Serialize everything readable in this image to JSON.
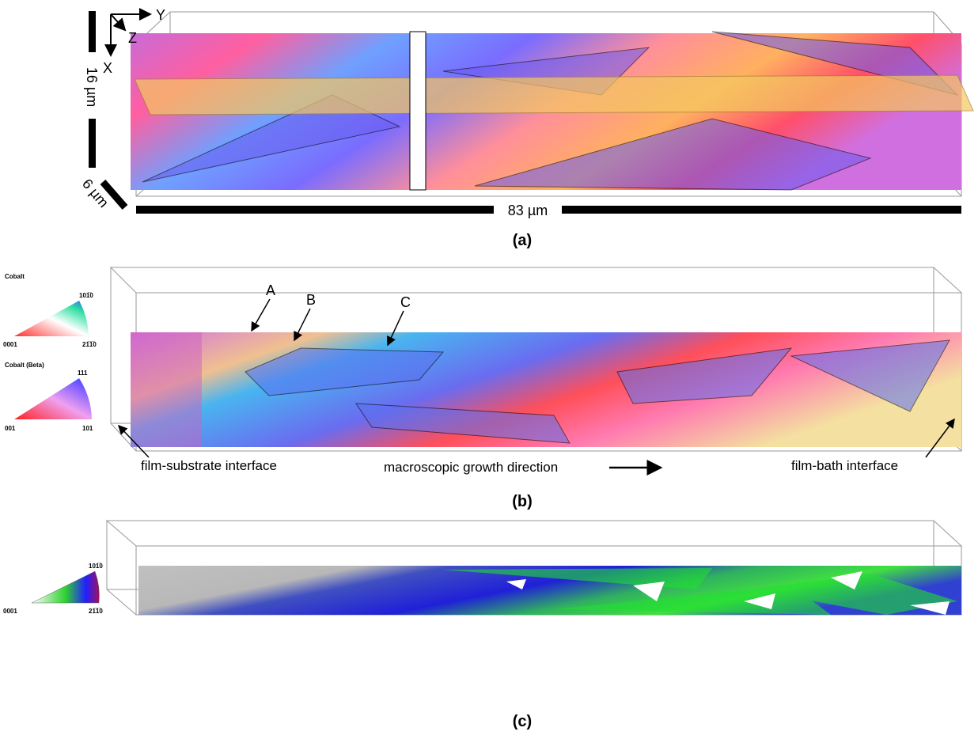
{
  "panel_a": {
    "axes": {
      "y": "Y",
      "z": "Z",
      "x": "X"
    },
    "scale_vertical": "16 µm",
    "scale_depth": "6 µm",
    "scale_length": "83 µm",
    "label": "(a)"
  },
  "panel_b": {
    "legends": [
      {
        "title": "Cobalt",
        "top": "101̅0",
        "left": "0001",
        "right": "21̅1̅0"
      },
      {
        "title": "Cobalt (Beta)",
        "top": "111",
        "left": "001",
        "right": "101"
      }
    ],
    "markers": [
      "A",
      "B",
      "C"
    ],
    "annotations": {
      "left": "film-substrate interface",
      "middle": "macroscopic growth direction",
      "right": "film-bath interface"
    },
    "label": "(b)"
  },
  "panel_c": {
    "legend": {
      "top": "101̅0",
      "left": "0001",
      "right": "21̅1̅0"
    },
    "label": "(c)"
  }
}
